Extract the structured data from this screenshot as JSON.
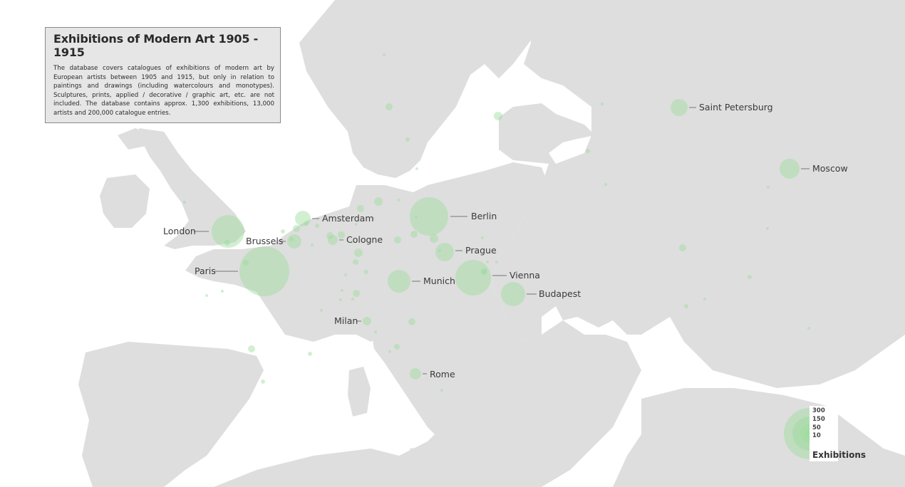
{
  "info": {
    "title": "Exhibitions of Modern Art 1905 - 1915",
    "description": "The database covers catalogues of exhibitions of modern art by European artists between 1905 and 1915, but only in relation to paintings and drawings (including watercolours and monotypes). Sculptures, prints, applied / decorative / graphic art, etc. are not included. The database contains approx. 1,300 exhibitions, 13,000 artists and 200,000 catalogue entries."
  },
  "colors": {
    "land": "#dedede",
    "sea": "#ffffff",
    "bubble": "#9bdc9b"
  },
  "legend": {
    "title": "Exhibitions",
    "levels": [
      "300",
      "150",
      "50",
      "10"
    ]
  },
  "cities": [
    {
      "name": "London",
      "label": "London"
    },
    {
      "name": "Paris",
      "label": "Paris"
    },
    {
      "name": "Brussels",
      "label": "Brussels"
    },
    {
      "name": "Amsterdam",
      "label": "Amsterdam"
    },
    {
      "name": "Cologne",
      "label": "Cologne"
    },
    {
      "name": "Berlin",
      "label": "Berlin"
    },
    {
      "name": "Prague",
      "label": "Prague"
    },
    {
      "name": "Munich",
      "label": "Munich"
    },
    {
      "name": "Vienna",
      "label": "Vienna"
    },
    {
      "name": "Budapest",
      "label": "Budapest"
    },
    {
      "name": "Milan",
      "label": "Milan"
    },
    {
      "name": "Rome",
      "label": "Rome"
    },
    {
      "name": "Saint Petersburg",
      "label": "Saint Petersburg"
    },
    {
      "name": "Moscow",
      "label": "Moscow"
    }
  ]
}
